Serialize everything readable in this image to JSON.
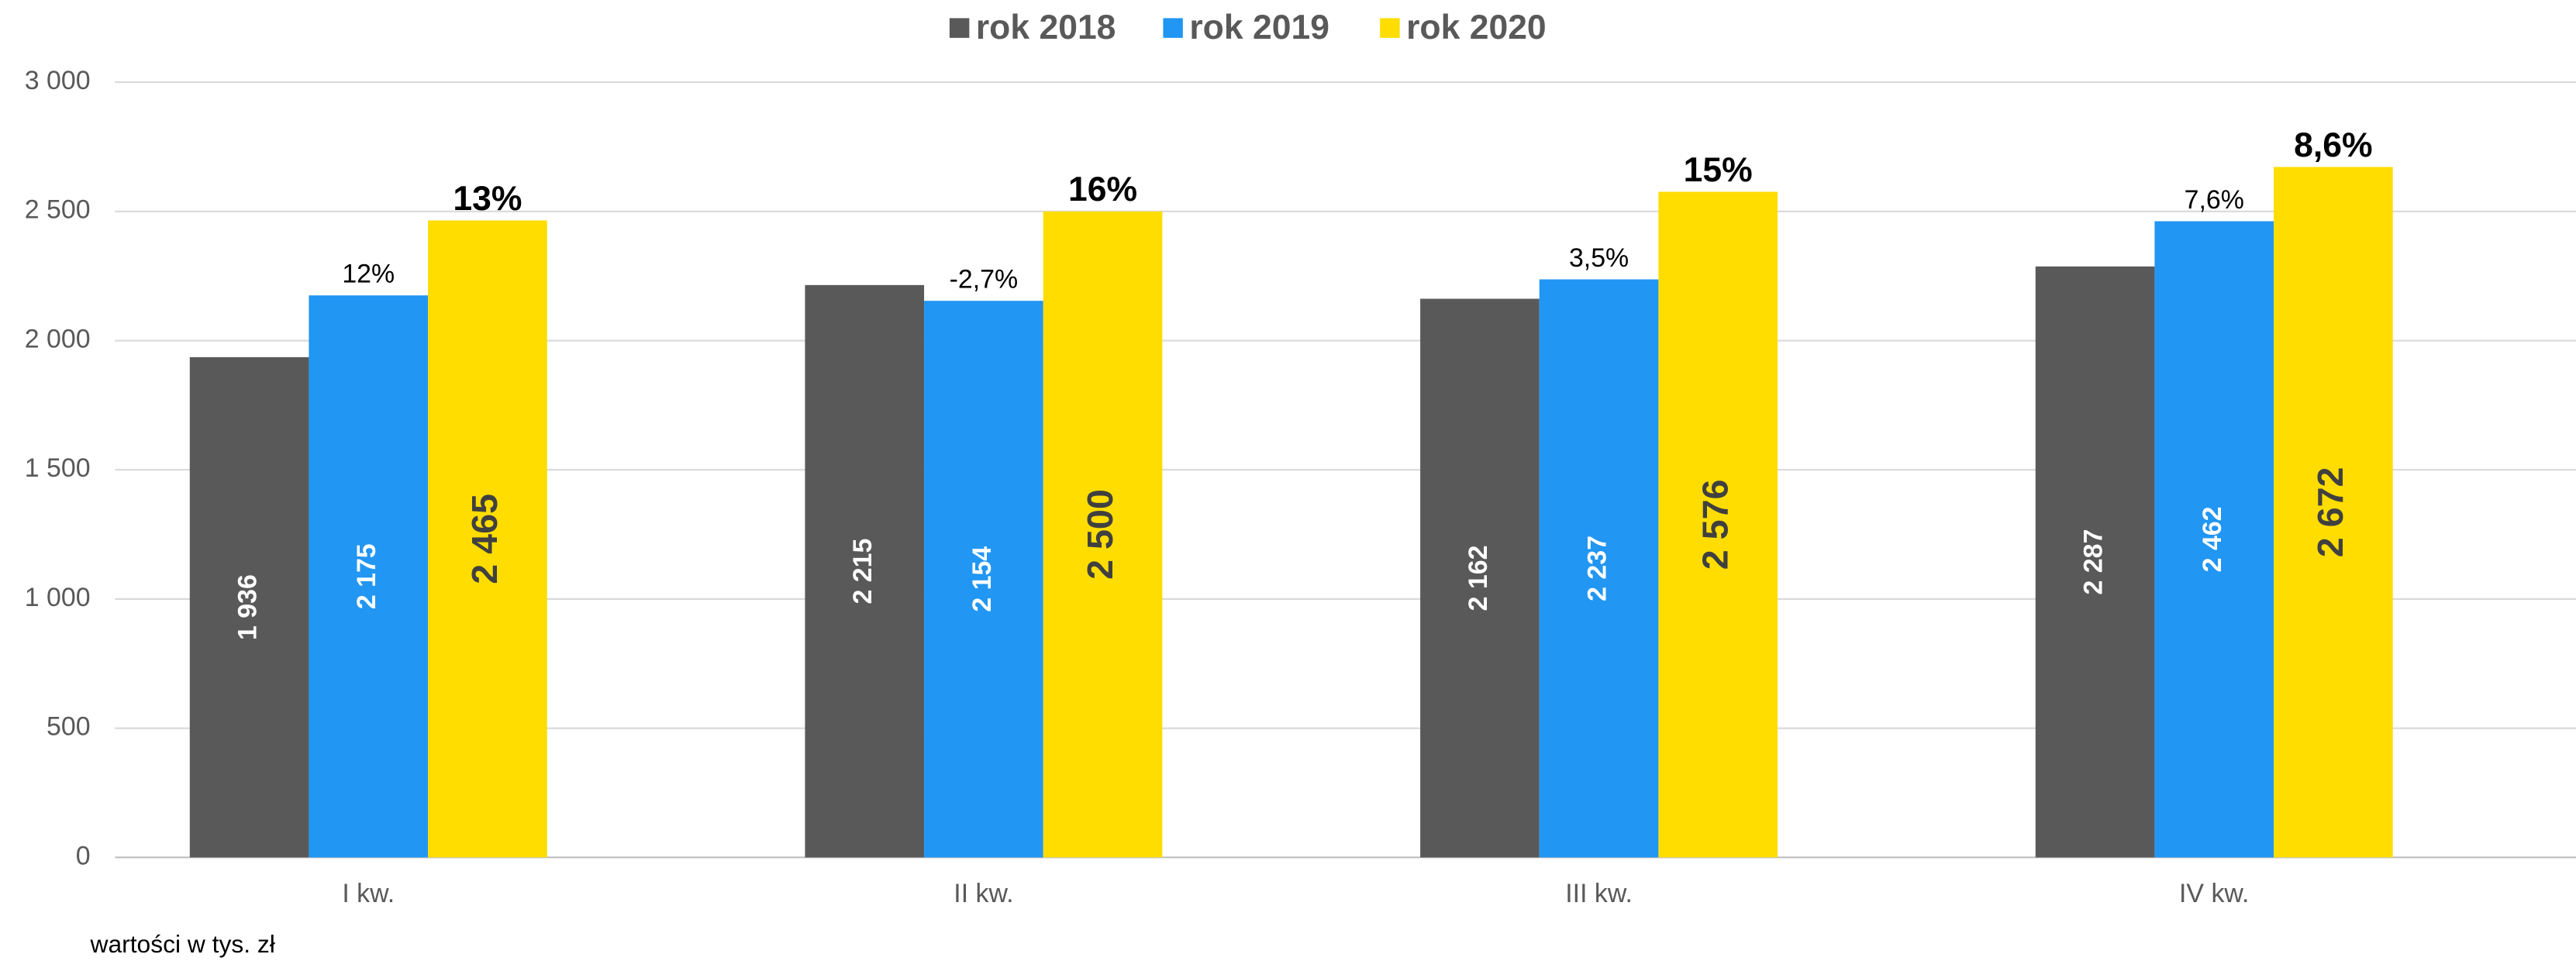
{
  "chart_data": {
    "type": "bar",
    "categories": [
      "I kw.",
      "II kw.",
      "III kw.",
      "IV kw."
    ],
    "series": [
      {
        "name": "rok 2018",
        "color": "#595959",
        "values": [
          1936,
          2215,
          2162,
          2287
        ],
        "value_labels": [
          "1 936",
          "2 215",
          "2 162",
          "2 287"
        ]
      },
      {
        "name": "rok 2019",
        "color": "#2196f3",
        "values": [
          2175,
          2154,
          2237,
          2462
        ],
        "value_labels": [
          "2 175",
          "2 154",
          "2 237",
          "2 462"
        ],
        "annotations": [
          "12%",
          "-2,7%",
          "3,5%",
          "7,6%"
        ]
      },
      {
        "name": "rok 2020",
        "color": "#ffdd00",
        "values": [
          2465,
          2500,
          2576,
          2672
        ],
        "value_labels": [
          "2 465",
          "2 500",
          "2 576",
          "2 672"
        ],
        "annotations": [
          "13%",
          "16%",
          "15%",
          "8,6%"
        ]
      }
    ],
    "ylim": [
      0,
      3000
    ],
    "yticks": [
      0,
      500,
      {
        "value": 1000,
        "label": "1 000"
      },
      {
        "value": 1500,
        "label": "1 500"
      },
      {
        "value": 2000,
        "label": "2 000"
      },
      {
        "value": 2500,
        "label": "2 500"
      },
      {
        "value": 3000,
        "label": "3 000"
      }
    ],
    "grid": true,
    "legend": "top",
    "note": "wartości w tys. zł"
  }
}
